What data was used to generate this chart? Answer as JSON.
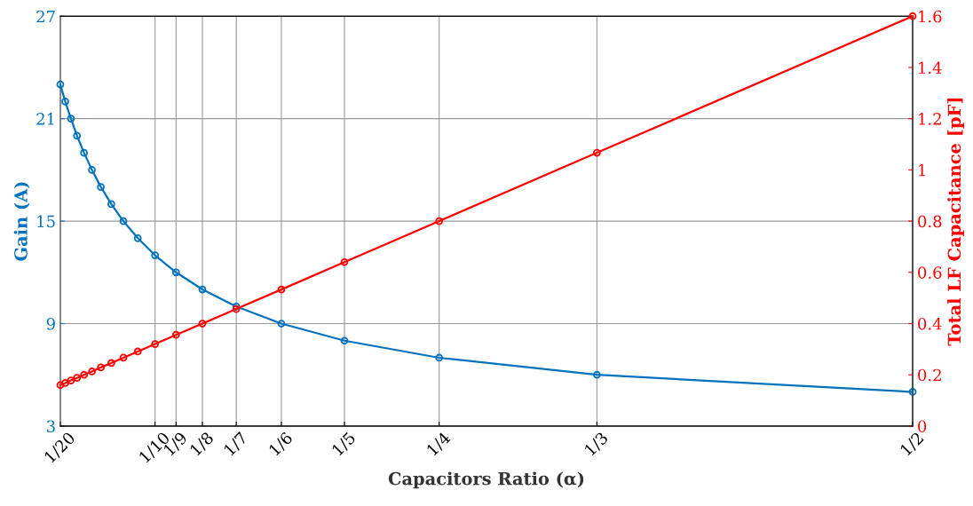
{
  "chart_data": {
    "type": "line",
    "xlabel": "Capacitors Ratio (α)",
    "ylabel": "Gain (A)",
    "y2label": "Total LF Capacitance [pF]",
    "x": [
      0.05,
      0.0526,
      0.0556,
      0.0588,
      0.0625,
      0.0667,
      0.0714,
      0.0769,
      0.0833,
      0.0909,
      0.1,
      0.1111,
      0.125,
      0.1429,
      0.1667,
      0.2,
      0.25,
      0.3333,
      0.5
    ],
    "series": [
      {
        "color": "#0072bd",
        "values": [
          23,
          22,
          21,
          20,
          19,
          18,
          17,
          16,
          15,
          14,
          13,
          12,
          11,
          10,
          9,
          8,
          7,
          6,
          5
        ]
      },
      {
        "color": "#ff0000",
        "axis": "y2",
        "values": [
          0.16,
          0.168,
          0.178,
          0.188,
          0.2,
          0.213,
          0.229,
          0.246,
          0.267,
          0.291,
          0.32,
          0.356,
          0.4,
          0.457,
          0.533,
          0.64,
          0.8,
          1.067,
          1.6
        ]
      }
    ],
    "xlim": [
      0.05,
      0.5
    ],
    "xticks": [
      {
        "value": 0.05,
        "label": "1/20"
      },
      {
        "value": 0.1,
        "label": "1/10"
      },
      {
        "value": 0.1111,
        "label": "1/9"
      },
      {
        "value": 0.125,
        "label": "1/8"
      },
      {
        "value": 0.1429,
        "label": "1/7"
      },
      {
        "value": 0.1667,
        "label": "1/6"
      },
      {
        "value": 0.2,
        "label": "1/5"
      },
      {
        "value": 0.25,
        "label": "1/4"
      },
      {
        "value": 0.3333,
        "label": "1/3"
      },
      {
        "value": 0.5,
        "label": "1/2"
      }
    ],
    "ylim": [
      3,
      27
    ],
    "yticks": [
      3,
      9,
      15,
      21,
      27
    ],
    "y2lim": [
      0,
      1.6
    ],
    "y2ticks": [
      0,
      0.2,
      0.4,
      0.6,
      0.8,
      1,
      1.2,
      1.4,
      1.6
    ],
    "grid": true,
    "marker": "circle",
    "line_style": "solid"
  }
}
